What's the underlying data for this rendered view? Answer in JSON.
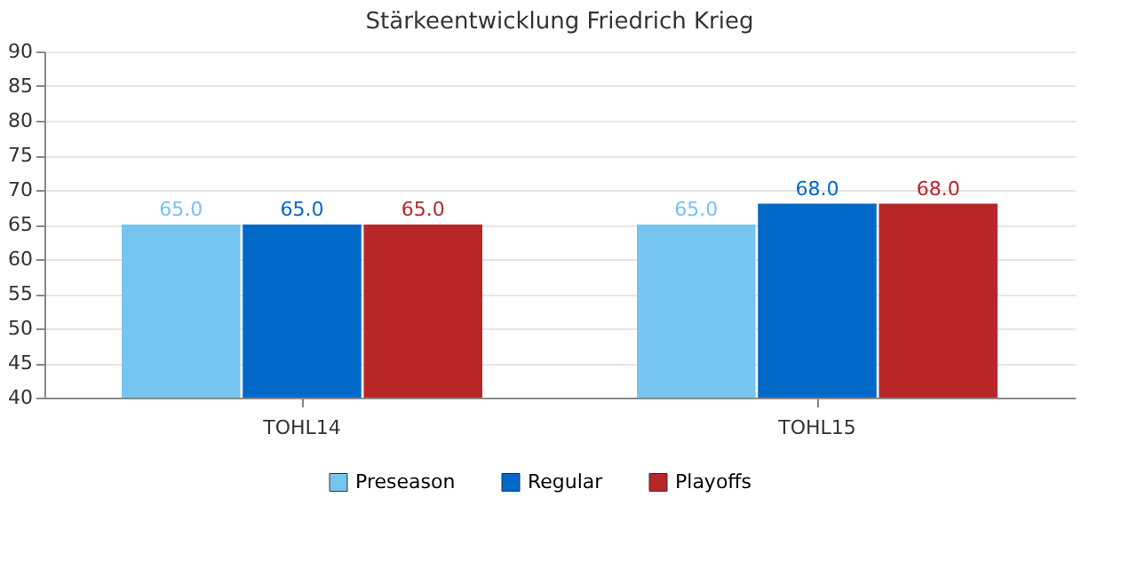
{
  "chart_data": {
    "type": "bar",
    "title": "Stärkeentwicklung Friedrich Krieg",
    "categories": [
      "TOHL14",
      "TOHL15"
    ],
    "series": [
      {
        "name": "Preseason",
        "color": "#76c4f0",
        "values": [
          65.0,
          65.0
        ],
        "value_labels": [
          "65.0",
          "65.0"
        ]
      },
      {
        "name": "Regular",
        "color": "#0068c6",
        "values": [
          65.0,
          68.0
        ],
        "value_labels": [
          "65.0",
          "68.0"
        ]
      },
      {
        "name": "Playoffs",
        "color": "#b82628",
        "values": [
          65.0,
          68.0
        ],
        "value_labels": [
          "65.0",
          "68.0"
        ]
      }
    ],
    "ylim": [
      40,
      90
    ],
    "yticks": [
      40,
      45,
      50,
      55,
      60,
      65,
      70,
      75,
      80,
      85,
      90
    ],
    "grid": "y",
    "legend": "bottom"
  }
}
